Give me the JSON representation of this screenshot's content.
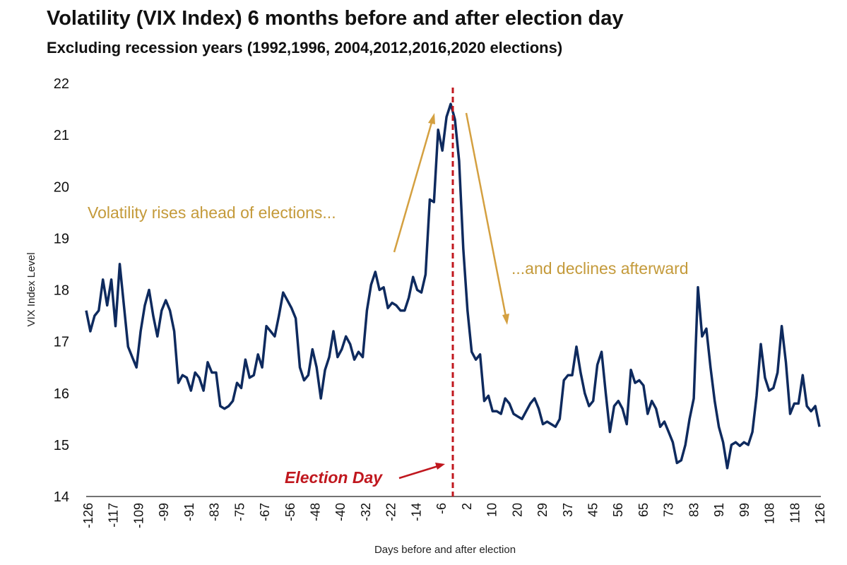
{
  "chart_data": {
    "type": "line",
    "title": "Volatility (VIX Index) 6 months before and after election day",
    "subtitle": "Excluding recession years (1992,1996, 2004,2012,2016,2020 elections)",
    "xlabel": "Days before and after election",
    "ylabel": "VIX Index Level",
    "ylim": [
      14,
      22
    ],
    "yticks": [
      14,
      15,
      16,
      17,
      18,
      19,
      20,
      21,
      22
    ],
    "xtick_labels": [
      "-126",
      "-117",
      "-109",
      "-99",
      "-91",
      "-83",
      "-75",
      "-67",
      "-56",
      "-48",
      "-40",
      "-32",
      "-22",
      "-14",
      "-6",
      "2",
      "10",
      "20",
      "29",
      "37",
      "45",
      "56",
      "65",
      "73",
      "83",
      "91",
      "99",
      "108",
      "118",
      "126"
    ],
    "grid": false,
    "line_color": "#0e2a5e",
    "series": [
      {
        "values": [
          17.6,
          17.2,
          17.5,
          17.6,
          18.2,
          17.7,
          18.2,
          17.3,
          18.5,
          17.7,
          16.9,
          16.7,
          16.5,
          17.2,
          17.7,
          18.0,
          17.5,
          17.1,
          17.6,
          17.8,
          17.6,
          17.2,
          16.2,
          16.35,
          16.3,
          16.05,
          16.4,
          16.3,
          16.05,
          16.6,
          16.4,
          16.4,
          15.75,
          15.7,
          15.75,
          15.85,
          16.2,
          16.1,
          16.65,
          16.3,
          16.35,
          16.75,
          16.5,
          17.3,
          17.2,
          17.1,
          17.5,
          17.95,
          17.8,
          17.65,
          17.45,
          16.5,
          16.25,
          16.35,
          16.85,
          16.5,
          15.9,
          16.45,
          16.7,
          17.2,
          16.7,
          16.85,
          17.1,
          16.95,
          16.65,
          16.8,
          16.7,
          17.6,
          18.1,
          18.35,
          18.0,
          18.05,
          17.65,
          17.75,
          17.7,
          17.6,
          17.6,
          17.85,
          18.25,
          18.0,
          17.95,
          18.3,
          19.75,
          19.7,
          21.1,
          20.7,
          21.35,
          21.6,
          21.3,
          20.5,
          18.8,
          17.6,
          16.8,
          16.65,
          16.75,
          15.85,
          15.95,
          15.65,
          15.65,
          15.6,
          15.9,
          15.8,
          15.6,
          15.55,
          15.5,
          15.65,
          15.8,
          15.9,
          15.7,
          15.4,
          15.45,
          15.4,
          15.35,
          15.5,
          16.25,
          16.35,
          16.35,
          16.9,
          16.4,
          16.0,
          15.75,
          15.85,
          16.55,
          16.8,
          16.0,
          15.25,
          15.75,
          15.85,
          15.7,
          15.4,
          16.45,
          16.2,
          16.25,
          16.15,
          15.6,
          15.85,
          15.7,
          15.35,
          15.45,
          15.25,
          15.05,
          14.65,
          14.7,
          15.0,
          15.5,
          15.9,
          18.05,
          17.1,
          17.25,
          16.5,
          15.85,
          15.35,
          15.05,
          14.55,
          15.0,
          15.05,
          14.98,
          15.05,
          15.0,
          15.25,
          15.95,
          16.95,
          16.3,
          16.05,
          16.1,
          16.4,
          17.3,
          16.6,
          15.6,
          15.8,
          15.8,
          16.35,
          15.75,
          15.65,
          15.75,
          15.35
        ]
      }
    ],
    "annotations": {
      "rise": "Volatility rises ahead of elections...",
      "decline": "...and declines afterward",
      "election_day": "Election Day"
    },
    "annotation_color": "#c49a3a",
    "election_line_color": "#c0171e"
  }
}
